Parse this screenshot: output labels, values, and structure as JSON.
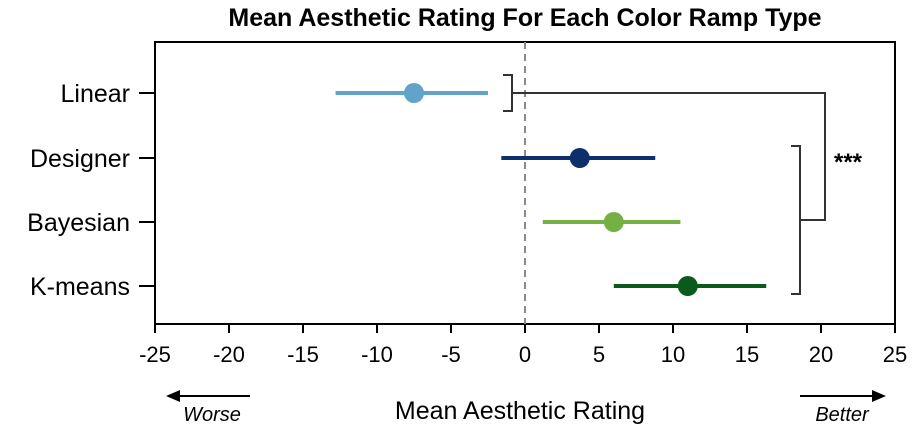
{
  "chart_data": {
    "type": "scatter",
    "title": "Mean Aesthetic Rating For Each Color Ramp Type",
    "xlabel": "Mean Aesthetic Rating",
    "xlim": [
      -25,
      25
    ],
    "xticks": [
      -25,
      -20,
      -15,
      -10,
      -5,
      0,
      5,
      10,
      15,
      20,
      25
    ],
    "reference_line": 0,
    "categories": [
      "Linear",
      "Designer",
      "Bayesian",
      "K-means"
    ],
    "series": [
      {
        "category": "Linear",
        "mean": -7.5,
        "ci_low": -12.8,
        "ci_high": -2.5,
        "color": "#62a3cb"
      },
      {
        "category": "Designer",
        "mean": 3.7,
        "ci_low": -1.6,
        "ci_high": 8.8,
        "color": "#0d2f6c"
      },
      {
        "category": "Bayesian",
        "mean": 6.0,
        "ci_low": 1.2,
        "ci_high": 10.5,
        "color": "#74b044"
      },
      {
        "category": "K-means",
        "mean": 11.0,
        "ci_low": 6.0,
        "ci_high": 16.3,
        "color": "#0a5a1c"
      }
    ],
    "significance": {
      "label": "***",
      "group_a": [
        "Linear"
      ],
      "group_b": [
        "Designer",
        "Bayesian",
        "K-means"
      ]
    },
    "direction_labels": {
      "left": "Worse",
      "right": "Better"
    }
  }
}
